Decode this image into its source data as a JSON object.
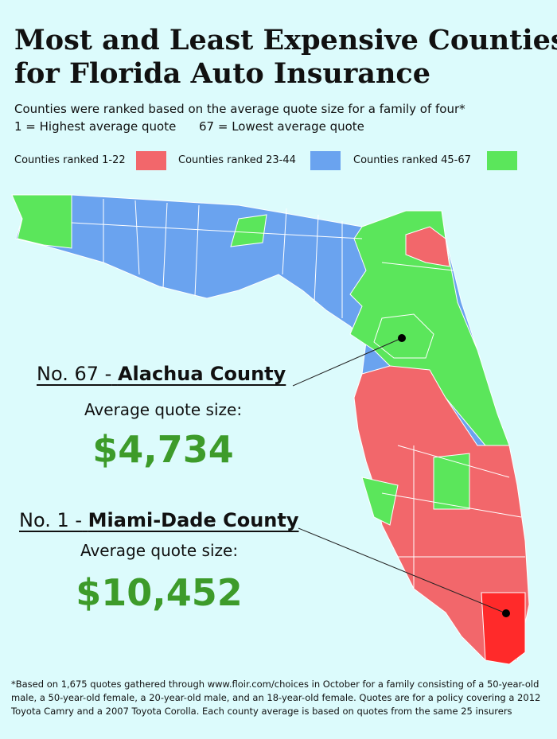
{
  "header": {
    "title_lines": [
      "Most and Least Expensive Counties",
      "for Florida Auto Insurance"
    ],
    "subtitle": "Counties were ranked based on the average quote size for a family of four*",
    "scale_high": "1 = Highest average quote",
    "scale_low": "67 = Lowest average quote"
  },
  "legend": [
    {
      "label": "Counties ranked 1-22",
      "color": "#f2676b"
    },
    {
      "label": "Counties ranked 23-44",
      "color": "#6aa3ef"
    },
    {
      "label": "Counties ranked 45-67",
      "color": "#5be65b"
    }
  ],
  "callouts": [
    {
      "rank": "No. 67 -",
      "county": "Alachua County",
      "caption": "Average quote size:",
      "amount": "$4,734"
    },
    {
      "rank": "No. 1 -",
      "county": "Miami-Dade County",
      "caption": "Average quote size:",
      "amount": "$10,452"
    }
  ],
  "highlight_color": "#ff2a2a",
  "footnote": "*Based on 1,675 quotes gathered through www.floir.com/choices in October for a family consisting of a 50-year-old male, a 50-year-old female, a 20-year-old male, and an 18-year-old female. Quotes are for a policy covering a 2012 Toyota Camry and a 2007 Toyota Corolla. Each county average is based on quotes from the same 25 insurers"
}
